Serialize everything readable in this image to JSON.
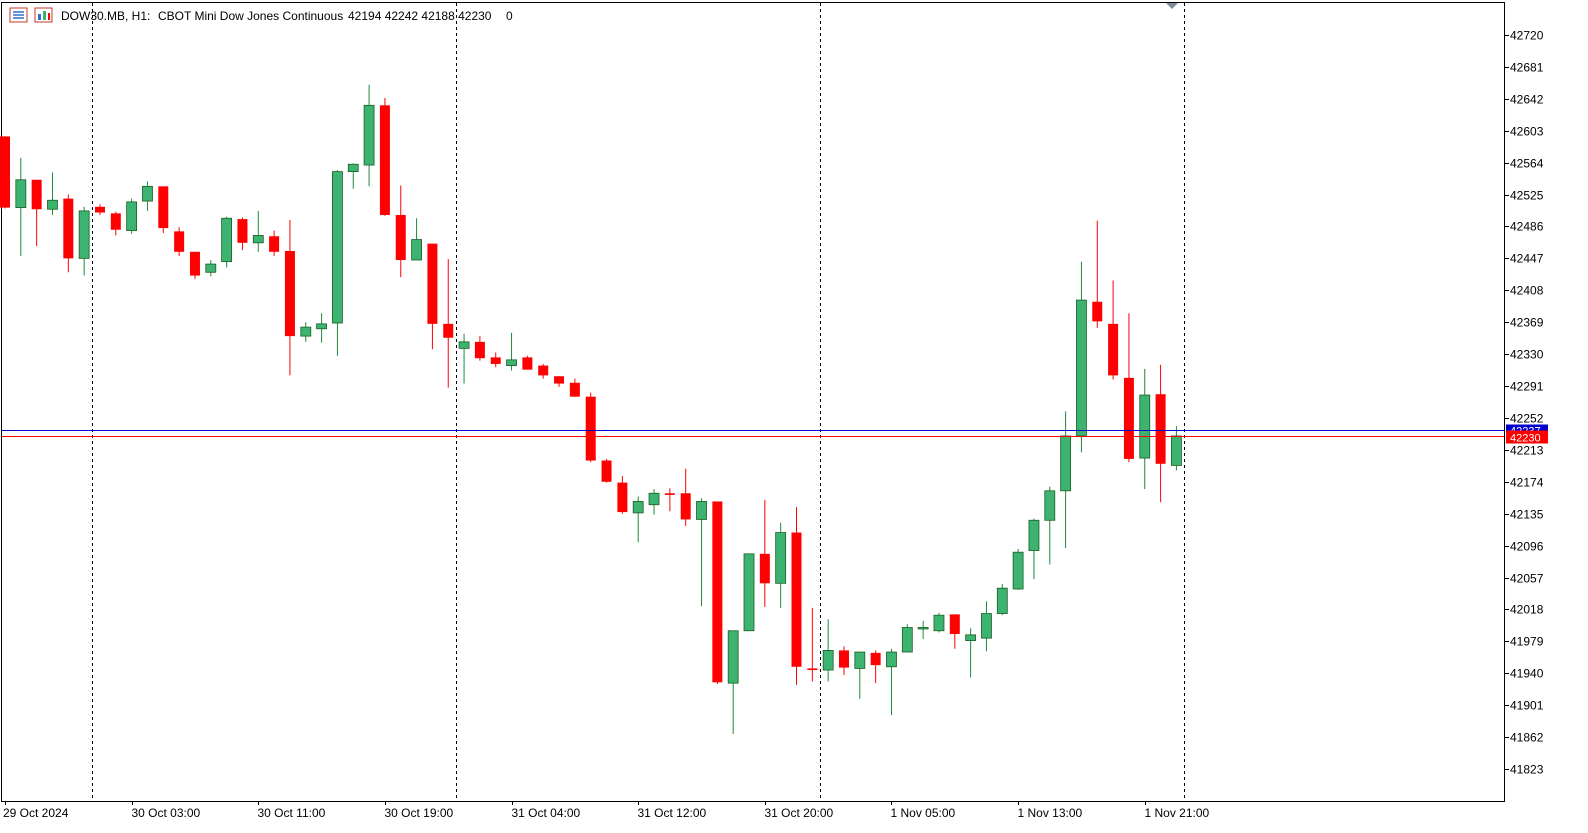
{
  "header": {
    "symbol_timeframe": "DOW30.MB, H1:",
    "description": "CBOT Mini Dow Jones Continuous",
    "ohlc": "42194 42242 42188 42230",
    "extra": "0",
    "icon_menu": "chart-menu-icon",
    "icon_type": "chart-type-icon"
  },
  "colors": {
    "bull": "#3cb371",
    "bear": "#ff0000",
    "bid_line": "#ff0000",
    "ask_line": "#0000cd",
    "grid_sep": "#000000"
  },
  "chart_data": {
    "type": "candlestick",
    "timeframe": "H1",
    "ylim": [
      41784,
      42759
    ],
    "y_ticks": [
      42720,
      42681,
      42642,
      42603,
      42564,
      42525,
      42486,
      42447,
      42408,
      42369,
      42330,
      42291,
      42252,
      42213,
      42174,
      42135,
      42096,
      42057,
      42018,
      41979,
      41940,
      41901,
      41862,
      41823
    ],
    "x_tick_labels": [
      {
        "bar": 0,
        "label": "29 Oct 2024"
      },
      {
        "bar": 8,
        "label": "30 Oct 03:00"
      },
      {
        "bar": 16,
        "label": "30 Oct 11:00"
      },
      {
        "bar": 24,
        "label": "30 Oct 19:00"
      },
      {
        "bar": 32,
        "label": "31 Oct 04:00"
      },
      {
        "bar": 40,
        "label": "31 Oct 12:00"
      },
      {
        "bar": 48,
        "label": "31 Oct 20:00"
      },
      {
        "bar": 56,
        "label": "1 Nov 05:00"
      },
      {
        "bar": 64,
        "label": "1 Nov 13:00"
      },
      {
        "bar": 72,
        "label": "1 Nov 21:00"
      }
    ],
    "day_separators_bar": [
      5.5,
      28.5,
      51.5,
      74.5
    ],
    "current_price": {
      "bid": 42230,
      "ask": 42237
    },
    "candles": [
      [
        42596,
        42596,
        42508,
        42509
      ],
      [
        42509,
        42570,
        42450,
        42543
      ],
      [
        42543,
        42543,
        42462,
        42507
      ],
      [
        42507,
        42552,
        42500,
        42518
      ],
      [
        42520,
        42525,
        42430,
        42447
      ],
      [
        42447,
        42510,
        42426,
        42505
      ],
      [
        42510,
        42513,
        42500,
        42503
      ],
      [
        42502,
        42504,
        42475,
        42482
      ],
      [
        42481,
        42520,
        42477,
        42516
      ],
      [
        42517,
        42541,
        42505,
        42535
      ],
      [
        42535,
        42535,
        42478,
        42484
      ],
      [
        42480,
        42485,
        42450,
        42455
      ],
      [
        42455,
        42455,
        42422,
        42426
      ],
      [
        42430,
        42445,
        42425,
        42440
      ],
      [
        42443,
        42498,
        42436,
        42496
      ],
      [
        42495,
        42497,
        42457,
        42466
      ],
      [
        42466,
        42505,
        42455,
        42475
      ],
      [
        42474,
        42481,
        42450,
        42455
      ],
      [
        42456,
        42494,
        42304,
        42352
      ],
      [
        42352,
        42369,
        42345,
        42363
      ],
      [
        42361,
        42380,
        42344,
        42367
      ],
      [
        42368,
        42555,
        42328,
        42553
      ],
      [
        42553,
        42563,
        42532,
        42562
      ],
      [
        42561,
        42659,
        42535,
        42634
      ],
      [
        42634,
        42643,
        42499,
        42500
      ],
      [
        42500,
        42536,
        42424,
        42445
      ],
      [
        42445,
        42496,
        42445,
        42470
      ],
      [
        42465,
        42465,
        42336,
        42367
      ],
      [
        42367,
        42446,
        42289,
        42350
      ],
      [
        42337,
        42355,
        42294,
        42345
      ],
      [
        42345,
        42352,
        42322,
        42325
      ],
      [
        42326,
        42332,
        42314,
        42318
      ],
      [
        42316,
        42356,
        42310,
        42323
      ],
      [
        42326,
        42328,
        42311,
        42311
      ],
      [
        42316,
        42318,
        42300,
        42304
      ],
      [
        42303,
        42303,
        42290,
        42294
      ],
      [
        42295,
        42300,
        42278,
        42278
      ],
      [
        42278,
        42283,
        42198,
        42200
      ],
      [
        42200,
        42202,
        42173,
        42174
      ],
      [
        42173,
        42181,
        42135,
        42137
      ],
      [
        42136,
        42156,
        42100,
        42150
      ],
      [
        42146,
        42165,
        42134,
        42160
      ],
      [
        42160,
        42166,
        42138,
        42158
      ],
      [
        42160,
        42190,
        42120,
        42128
      ],
      [
        42128,
        42154,
        42022,
        42150
      ],
      [
        42150,
        42150,
        41927,
        41929
      ],
      [
        41928,
        41990,
        41866,
        41992
      ],
      [
        41992,
        42085,
        41992,
        42086
      ],
      [
        42086,
        42152,
        42021,
        42050
      ],
      [
        42050,
        42124,
        42020,
        42112
      ],
      [
        42112,
        42143,
        41926,
        41948
      ],
      [
        41946,
        42020,
        41930,
        41944
      ],
      [
        41944,
        42006,
        41930,
        41968
      ],
      [
        41968,
        41973,
        41938,
        41947
      ],
      [
        41946,
        41965,
        41909,
        41966
      ],
      [
        41965,
        41968,
        41928,
        41950
      ],
      [
        41948,
        41970,
        41889,
        41966
      ],
      [
        41966,
        42000,
        41967,
        41996
      ],
      [
        41996,
        42004,
        41982,
        41996
      ],
      [
        41992,
        42014,
        41990,
        42011
      ],
      [
        42012,
        42012,
        41970,
        41988
      ],
      [
        41980,
        41995,
        41935,
        41987
      ],
      [
        41983,
        42028,
        41967,
        42013
      ],
      [
        42013,
        42049,
        42011,
        42044
      ],
      [
        42043,
        42092,
        42042,
        42088
      ],
      [
        42090,
        42129,
        42055,
        42127
      ],
      [
        42127,
        42168,
        42073,
        42163
      ],
      [
        42163,
        42260,
        42093,
        42230
      ],
      [
        42230,
        42443,
        42210,
        42396
      ],
      [
        42394,
        42493,
        42362,
        42370
      ],
      [
        42367,
        42420,
        42299,
        42304
      ],
      [
        42301,
        42380,
        42198,
        42202
      ],
      [
        42203,
        42312,
        42165,
        42280
      ],
      [
        42281,
        42317,
        42149,
        42196
      ],
      [
        42194,
        42242,
        42188,
        42230
      ]
    ]
  }
}
